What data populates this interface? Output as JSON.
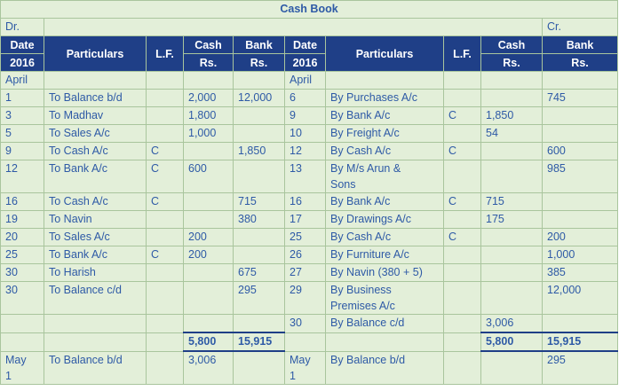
{
  "title": "Cash Book",
  "dr": "Dr.",
  "cr": "Cr.",
  "headers": {
    "date": "Date",
    "year": "2016",
    "particulars": "Particulars",
    "lf": "L.F.",
    "cash": "Cash",
    "bank": "Bank",
    "rs": "Rs."
  },
  "month": "April",
  "rows": [
    {
      "dd": "1",
      "dp": "To Balance b/d",
      "dlf": "",
      "dc": "2,000",
      "db": "12,000",
      "cd": "6",
      "cp": "By Purchases A/c",
      "clf": "",
      "cc": "",
      "cb": "745"
    },
    {
      "dd": "3",
      "dp": "To Madhav",
      "dlf": "",
      "dc": "1,800",
      "db": "",
      "cd": "9",
      "cp": "By Bank A/c",
      "clf": "C",
      "cc": "1,850",
      "cb": ""
    },
    {
      "dd": "5",
      "dp": "To Sales A/c",
      "dlf": "",
      "dc": "1,000",
      "db": "",
      "cd": "10",
      "cp": "By Freight A/c",
      "clf": "",
      "cc": "54",
      "cb": ""
    },
    {
      "dd": "9",
      "dp": "To Cash A/c",
      "dlf": "C",
      "dc": "",
      "db": "1,850",
      "cd": "12",
      "cp": "By Cash A/c",
      "clf": "C",
      "cc": "",
      "cb": "600"
    },
    {
      "dd": "12",
      "dp": "To Bank A/c",
      "dlf": "C",
      "dc": "600",
      "db": "",
      "cd": "13",
      "cp": "By M/s Arun &",
      "cp2": "Sons",
      "clf": "",
      "cc": "",
      "cb": "985"
    },
    {
      "dd": "16",
      "dp": "To Cash A/c",
      "dlf": "C",
      "dc": "",
      "db": "715",
      "cd": "16",
      "cp": "By Bank A/c",
      "clf": "C",
      "cc": "715",
      "cb": ""
    },
    {
      "dd": "19",
      "dp": "To Navin",
      "dlf": "",
      "dc": "",
      "db": "380",
      "cd": "17",
      "cp": "By Drawings A/c",
      "clf": "",
      "cc": "175",
      "cb": ""
    },
    {
      "dd": "20",
      "dp": "To Sales A/c",
      "dlf": "",
      "dc": "200",
      "db": "",
      "cd": "25",
      "cp": "By Cash A/c",
      "clf": "C",
      "cc": "",
      "cb": "200"
    },
    {
      "dd": "25",
      "dp": "To Bank A/c",
      "dlf": "C",
      "dc": "200",
      "db": "",
      "cd": "26",
      "cp": "By Furniture A/c",
      "clf": "",
      "cc": "",
      "cb": "1,000"
    },
    {
      "dd": "30",
      "dp": "To Harish",
      "dlf": "",
      "dc": "",
      "db": "675",
      "cd": "27",
      "cp": "By Navin (380 + 5)",
      "clf": "",
      "cc": "",
      "cb": "385"
    },
    {
      "dd": "30",
      "dp": "To Balance c/d",
      "dlf": "",
      "dc": "",
      "db": "295",
      "cd": "29",
      "cp": "By Business",
      "cp2": "Premises A/c",
      "clf": "",
      "cc": "",
      "cb": "12,000"
    },
    {
      "dd": "",
      "dp": "",
      "dlf": "",
      "dc": "",
      "db": "",
      "cd": "30",
      "cp": "By Balance c/d",
      "clf": "",
      "cc": "3,006",
      "cb": ""
    }
  ],
  "totals": {
    "dc": "5,800",
    "db": "15,915",
    "cc": "5,800",
    "cb": "15,915"
  },
  "last": {
    "dd": "May",
    "dd2": "1",
    "dp": "To Balance b/d",
    "dc": "3,006",
    "db": "",
    "cd": "May",
    "cd2": "1",
    "cp": "By Balance b/d",
    "cc": "",
    "cb": "295"
  }
}
